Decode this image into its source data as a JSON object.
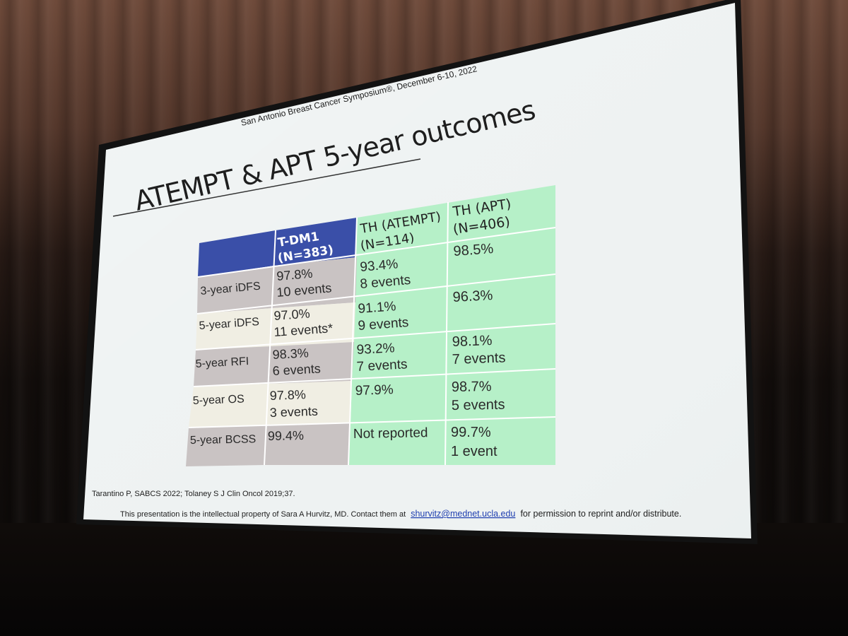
{
  "header": {
    "conference": "San Antonio Breast Cancer Symposium®, December 6-10, 2022"
  },
  "slide": {
    "title": "ATEMPT & APT 5-year outcomes",
    "table": {
      "columns": [
        "",
        "T-DM1\n(N=383)",
        "TH (ATEMPT)\n(N=114)",
        "TH (APT)\n(N=406)"
      ],
      "rows": [
        {
          "label": "3-year iDFS",
          "tdm1": [
            "97.8%",
            "10 events"
          ],
          "th_atempt": [
            "93.4%",
            "8 events"
          ],
          "th_apt": [
            "98.5%"
          ]
        },
        {
          "label": "5-year iDFS",
          "tdm1": [
            "97.0%",
            "11 events*"
          ],
          "th_atempt": [
            "91.1%",
            "9 events"
          ],
          "th_apt": [
            "96.3%"
          ]
        },
        {
          "label": "5-year RFI",
          "tdm1": [
            "98.3%",
            "6 events"
          ],
          "th_atempt": [
            "93.2%",
            "7 events"
          ],
          "th_apt": [
            "98.1%",
            "7 events"
          ]
        },
        {
          "label": "5-year OS",
          "tdm1": [
            "97.8%",
            "3 events"
          ],
          "th_atempt": [
            "97.9%"
          ],
          "th_apt": [
            "98.7%",
            "5 events"
          ]
        },
        {
          "label": "5-year BCSS",
          "tdm1": [
            "99.4%"
          ],
          "th_atempt": [
            "Not reported"
          ],
          "th_apt": [
            "99.7%",
            "1 event"
          ]
        }
      ]
    },
    "reference": "Tarantino P, SABCS 2022; Tolaney S J Clin Oncol 2019;37.",
    "footer": {
      "text_before": "This presentation is the intellectual property of Sara A Hurvitz, MD. Contact them at",
      "email": "shurvitz@mednet.ucla.edu",
      "text_after": "for permission to reprint and/or distribute."
    }
  },
  "colors": {
    "slide_bg": "#eef2f2",
    "header_blue": "#3a4fa8",
    "green": "#b6f0c8",
    "row_gray": "#c9c3c3",
    "row_cream": "#f0eee3"
  }
}
